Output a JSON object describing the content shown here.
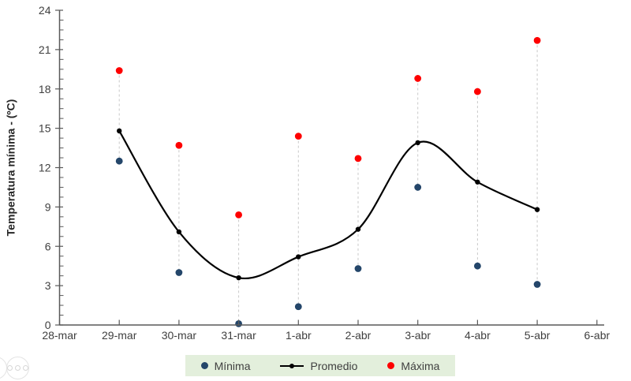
{
  "chart_data": {
    "type": "line",
    "title": "",
    "xlabel": "",
    "ylabel": "Temperatura mínima - (ºC)",
    "x_axis_categories": [
      "28-mar",
      "29-mar",
      "30-mar",
      "31-mar",
      "1-abr",
      "2-abr",
      "3-abr",
      "4-abr",
      "5-abr",
      "6-abr"
    ],
    "categories": [
      "29-mar",
      "30-mar",
      "31-mar",
      "1-abr",
      "2-abr",
      "3-abr",
      "4-abr",
      "5-abr"
    ],
    "series": [
      {
        "name": "Mínima",
        "type": "scatter",
        "color": "#24466a",
        "marker_radius": 4.4,
        "values": [
          12.5,
          4.0,
          0.1,
          1.4,
          4.3,
          10.5,
          4.5,
          3.1
        ]
      },
      {
        "name": "Promedio",
        "type": "smooth-line",
        "color": "#000000",
        "marker_radius": 3.2,
        "values": [
          14.8,
          7.1,
          3.6,
          5.2,
          7.3,
          13.9,
          10.9,
          8.8
        ]
      },
      {
        "name": "Máxima",
        "type": "scatter",
        "color": "#fe0000",
        "marker_radius": 4.4,
        "values": [
          19.4,
          13.7,
          8.4,
          14.4,
          12.7,
          18.8,
          17.8,
          21.7
        ]
      }
    ],
    "y_axis": {
      "min": 0,
      "max": 24,
      "major_unit": 3,
      "minor_unit": 0.75
    },
    "grid": false,
    "legend_position": "bottom",
    "connectors": {
      "style": "dashed",
      "color": "#c9c9c9",
      "from_series": "Máxima",
      "to_series": "Mínima"
    }
  },
  "colors": {
    "axis_line": "#595959",
    "tick_label": "#3f3f3f",
    "legend_background": "#e3efdc",
    "minima": "#24466a",
    "promedio": "#000000",
    "maxima": "#fe0000",
    "connector": "#c9c9c9"
  },
  "legend": {
    "minima_label": "Mínima",
    "promedio_label": "Promedio",
    "maxima_label": "Máxima"
  }
}
